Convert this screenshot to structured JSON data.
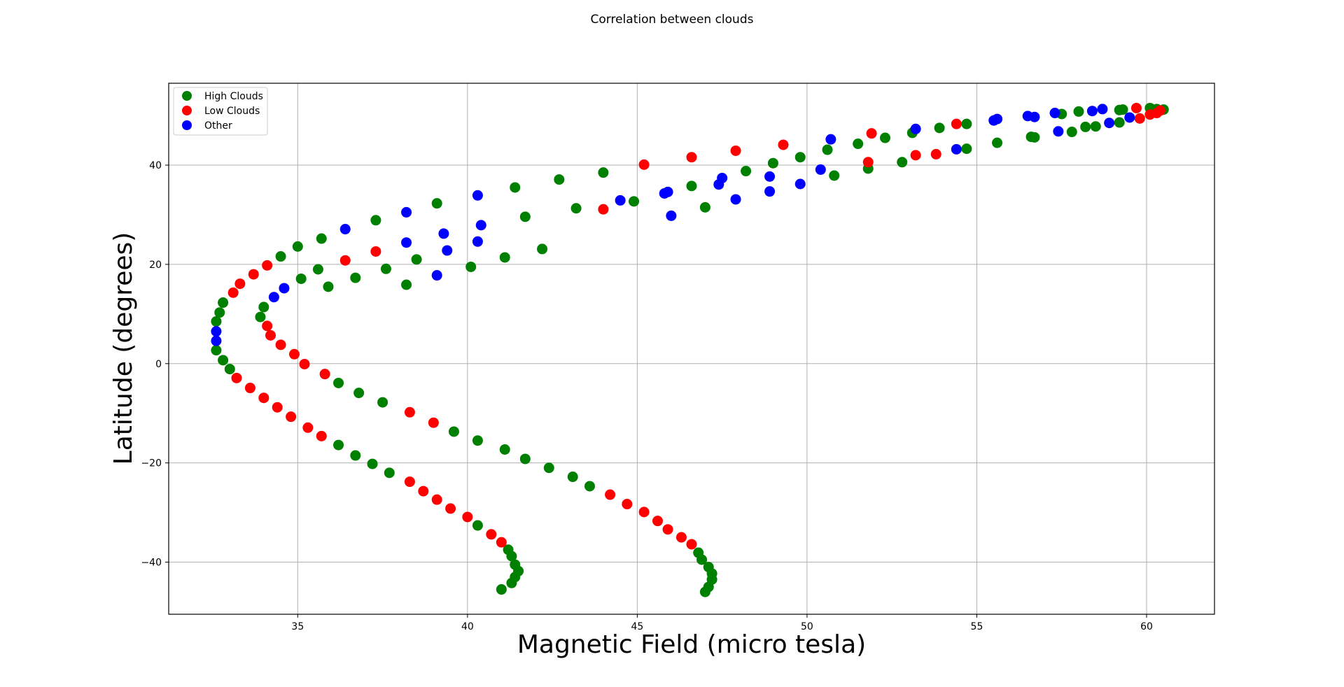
{
  "chart_data": {
    "type": "scatter",
    "title": "Correlation between clouds",
    "xlabel": "Magnetic Field (micro tesla)",
    "ylabel": "Latitude (degrees)",
    "xlim": [
      31.2,
      62.0
    ],
    "ylim": [
      -50.5,
      56.5
    ],
    "xticks": [
      35,
      40,
      45,
      50,
      55,
      60
    ],
    "yticks": [
      -40,
      -20,
      0,
      20,
      40
    ],
    "grid": true,
    "legend_position": "top-left",
    "series": [
      {
        "name": "High Clouds",
        "color": "#008000",
        "points": [
          [
            41.0,
            -45.5
          ],
          [
            41.3,
            -44.2
          ],
          [
            41.4,
            -43.0
          ],
          [
            41.5,
            -41.8
          ],
          [
            41.4,
            -40.5
          ],
          [
            41.3,
            -38.8
          ],
          [
            41.2,
            -37.5
          ],
          [
            40.3,
            -32.6
          ],
          [
            41.1,
            -17.3
          ],
          [
            41.7,
            -19.2
          ],
          [
            40.3,
            -15.5
          ],
          [
            39.6,
            -13.7
          ],
          [
            42.4,
            -21.0
          ],
          [
            43.1,
            -22.8
          ],
          [
            43.6,
            -24.7
          ],
          [
            47.0,
            -46.0
          ],
          [
            47.1,
            -45.0
          ],
          [
            47.2,
            -43.5
          ],
          [
            47.2,
            -42.3
          ],
          [
            47.1,
            -41.0
          ],
          [
            46.9,
            -39.5
          ],
          [
            46.8,
            -38.1
          ],
          [
            36.2,
            -16.4
          ],
          [
            36.7,
            -18.5
          ],
          [
            37.2,
            -20.2
          ],
          [
            37.7,
            -22.0
          ],
          [
            36.2,
            -3.9
          ],
          [
            36.8,
            -5.9
          ],
          [
            37.5,
            -7.8
          ],
          [
            32.6,
            2.7
          ],
          [
            32.8,
            0.7
          ],
          [
            33.0,
            -1.1
          ],
          [
            32.6,
            8.5
          ],
          [
            32.7,
            10.3
          ],
          [
            32.8,
            12.3
          ],
          [
            33.9,
            9.4
          ],
          [
            34.0,
            11.4
          ],
          [
            35.1,
            17.1
          ],
          [
            35.9,
            15.5
          ],
          [
            35.6,
            19.0
          ],
          [
            36.7,
            17.3
          ],
          [
            37.6,
            19.1
          ],
          [
            38.2,
            15.9
          ],
          [
            38.5,
            21.0
          ],
          [
            40.1,
            19.5
          ],
          [
            41.1,
            21.4
          ],
          [
            42.2,
            23.1
          ],
          [
            34.5,
            21.6
          ],
          [
            35.0,
            23.6
          ],
          [
            35.7,
            25.2
          ],
          [
            37.3,
            28.9
          ],
          [
            39.1,
            32.3
          ],
          [
            41.4,
            35.5
          ],
          [
            41.7,
            29.6
          ],
          [
            42.7,
            37.1
          ],
          [
            43.2,
            31.3
          ],
          [
            44.0,
            38.5
          ],
          [
            44.9,
            32.7
          ],
          [
            46.6,
            35.8
          ],
          [
            47.0,
            31.5
          ],
          [
            48.2,
            38.8
          ],
          [
            49.0,
            40.4
          ],
          [
            49.8,
            41.6
          ],
          [
            50.6,
            43.1
          ],
          [
            50.8,
            37.9
          ],
          [
            51.5,
            44.3
          ],
          [
            51.8,
            39.3
          ],
          [
            52.3,
            45.5
          ],
          [
            52.8,
            40.6
          ],
          [
            53.1,
            46.5
          ],
          [
            53.9,
            47.5
          ],
          [
            54.7,
            48.3
          ],
          [
            54.7,
            43.3
          ],
          [
            55.6,
            44.5
          ],
          [
            56.6,
            45.7
          ],
          [
            56.7,
            45.6
          ],
          [
            57.5,
            50.3
          ],
          [
            57.8,
            46.7
          ],
          [
            58.0,
            50.8
          ],
          [
            58.2,
            47.7
          ],
          [
            58.5,
            47.8
          ],
          [
            59.2,
            51.1
          ],
          [
            59.3,
            51.2
          ],
          [
            59.2,
            48.6
          ],
          [
            60.1,
            51.5
          ],
          [
            60.3,
            51.3
          ],
          [
            60.5,
            51.2
          ]
        ]
      },
      {
        "name": "Low Clouds",
        "color": "#ff0000",
        "points": [
          [
            40.7,
            -34.4
          ],
          [
            41.0,
            -36.0
          ],
          [
            40.0,
            -30.9
          ],
          [
            39.5,
            -29.2
          ],
          [
            39.1,
            -27.4
          ],
          [
            38.7,
            -25.7
          ],
          [
            38.3,
            -23.8
          ],
          [
            38.3,
            -9.8
          ],
          [
            39.0,
            -11.9
          ],
          [
            44.2,
            -26.4
          ],
          [
            44.7,
            -28.3
          ],
          [
            45.2,
            -29.9
          ],
          [
            45.6,
            -31.7
          ],
          [
            45.9,
            -33.4
          ],
          [
            46.3,
            -35.0
          ],
          [
            46.6,
            -36.4
          ],
          [
            33.2,
            -2.9
          ],
          [
            33.6,
            -4.9
          ],
          [
            34.0,
            -6.9
          ],
          [
            34.4,
            -8.8
          ],
          [
            34.8,
            -10.7
          ],
          [
            35.3,
            -12.9
          ],
          [
            35.7,
            -14.6
          ],
          [
            34.1,
            7.6
          ],
          [
            34.2,
            5.7
          ],
          [
            34.5,
            3.8
          ],
          [
            34.9,
            1.9
          ],
          [
            35.2,
            -0.1
          ],
          [
            35.8,
            -2.1
          ],
          [
            33.1,
            14.3
          ],
          [
            33.3,
            16.1
          ],
          [
            33.7,
            18.0
          ],
          [
            34.1,
            19.8
          ],
          [
            36.4,
            20.8
          ],
          [
            37.3,
            22.6
          ],
          [
            44.0,
            31.1
          ],
          [
            45.2,
            40.1
          ],
          [
            46.6,
            41.6
          ],
          [
            47.9,
            42.9
          ],
          [
            49.3,
            44.1
          ],
          [
            51.9,
            46.4
          ],
          [
            51.8,
            40.6
          ],
          [
            53.2,
            42.0
          ],
          [
            53.8,
            42.2
          ],
          [
            54.4,
            48.3
          ],
          [
            59.7,
            51.5
          ],
          [
            59.8,
            49.4
          ],
          [
            60.1,
            50.2
          ],
          [
            60.3,
            50.5
          ],
          [
            60.4,
            51.0
          ]
        ]
      },
      {
        "name": "Other",
        "color": "#0000ff",
        "points": [
          [
            32.6,
            4.6
          ],
          [
            32.6,
            6.5
          ],
          [
            34.3,
            13.4
          ],
          [
            34.6,
            15.2
          ],
          [
            36.4,
            27.1
          ],
          [
            38.2,
            30.5
          ],
          [
            38.2,
            24.4
          ],
          [
            39.1,
            17.8
          ],
          [
            39.3,
            26.2
          ],
          [
            39.4,
            22.8
          ],
          [
            40.3,
            33.9
          ],
          [
            40.3,
            24.6
          ],
          [
            40.4,
            27.9
          ],
          [
            44.5,
            32.9
          ],
          [
            45.8,
            34.3
          ],
          [
            45.9,
            34.6
          ],
          [
            46.0,
            29.8
          ],
          [
            47.4,
            36.1
          ],
          [
            47.5,
            37.4
          ],
          [
            47.9,
            33.1
          ],
          [
            48.9,
            37.7
          ],
          [
            48.9,
            34.7
          ],
          [
            49.8,
            36.2
          ],
          [
            50.4,
            39.1
          ],
          [
            50.7,
            45.2
          ],
          [
            53.2,
            47.3
          ],
          [
            54.4,
            43.2
          ],
          [
            55.5,
            49.0
          ],
          [
            55.6,
            49.3
          ],
          [
            56.5,
            49.9
          ],
          [
            56.7,
            49.7
          ],
          [
            57.3,
            50.5
          ],
          [
            57.4,
            46.8
          ],
          [
            58.4,
            50.9
          ],
          [
            58.7,
            51.3
          ],
          [
            58.9,
            48.5
          ],
          [
            59.5,
            49.6
          ]
        ]
      }
    ]
  }
}
